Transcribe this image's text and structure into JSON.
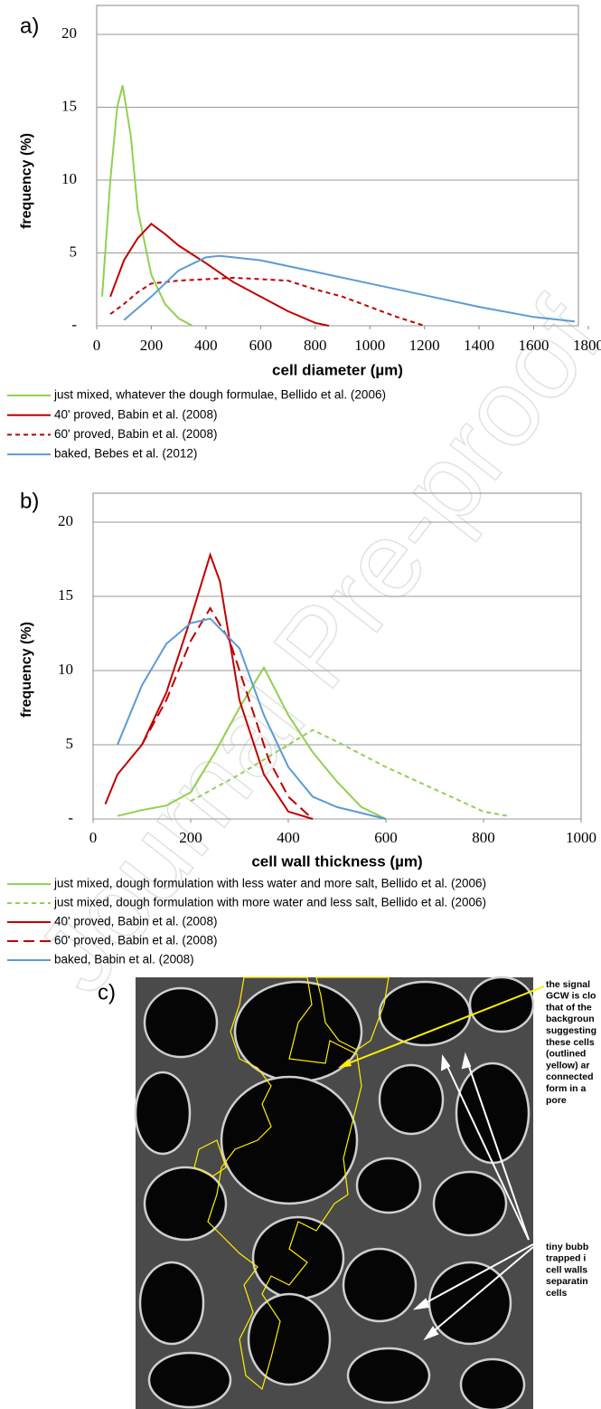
{
  "chart_data": [
    {
      "type": "line",
      "panel_label": "a)",
      "ylabel": "frequency (%)",
      "xlabel": "cell diameter (µm)",
      "xlim": [
        0,
        1800
      ],
      "xticks": [
        0,
        200,
        400,
        600,
        800,
        1000,
        1200,
        1400,
        1600,
        1800
      ],
      "ylim": [
        0,
        20
      ],
      "yticks": [
        {
          "value": 0,
          "label": "-"
        },
        5,
        10,
        15,
        20
      ],
      "grid": true,
      "series": [
        {
          "name": "just mixed, whatever the dough formulae, Bellido et al. (2006)",
          "color": "#92d050",
          "style": "solid",
          "x": [
            20,
            50,
            75,
            95,
            125,
            150,
            200,
            250,
            300,
            350
          ],
          "y": [
            2,
            10,
            15,
            16.5,
            13,
            8,
            3.5,
            1.5,
            0.5,
            0
          ]
        },
        {
          "name": "40' proved, Babin et al. (2008)",
          "color": "#c00000",
          "style": "solid",
          "x": [
            50,
            100,
            150,
            200,
            250,
            300,
            400,
            500,
            600,
            700,
            800,
            850
          ],
          "y": [
            2,
            4.5,
            6,
            7,
            6.3,
            5.5,
            4.3,
            3,
            2,
            1,
            0.2,
            0
          ]
        },
        {
          "name": "60' proved, Babin et al. (2008)",
          "color": "#c00000",
          "style": "dashed",
          "x": [
            50,
            100,
            150,
            200,
            300,
            400,
            500,
            600,
            700,
            800,
            900,
            1000,
            1100,
            1200
          ],
          "y": [
            0.8,
            1.5,
            2.3,
            2.9,
            3.1,
            3.2,
            3.3,
            3.2,
            3.1,
            2.5,
            2,
            1.3,
            0.6,
            0
          ]
        },
        {
          "name": "baked, Bebes et al. (2012)",
          "color": "#5b9bd5",
          "style": "solid",
          "x": [
            100,
            200,
            300,
            400,
            450,
            600,
            800,
            1000,
            1200,
            1400,
            1600,
            1750
          ],
          "y": [
            0.4,
            2,
            3.8,
            4.7,
            4.8,
            4.5,
            3.7,
            2.9,
            2.1,
            1.3,
            0.6,
            0.3
          ]
        }
      ]
    },
    {
      "type": "line",
      "panel_label": "b)",
      "ylabel": "frequency (%)",
      "xlabel": "cell wall thickness (µm)",
      "xlim": [
        0,
        1000
      ],
      "xticks": [
        0,
        200,
        400,
        600,
        800,
        1000
      ],
      "ylim": [
        0,
        20
      ],
      "yticks": [
        {
          "value": 0,
          "label": "-"
        },
        5,
        10,
        15,
        20
      ],
      "grid": true,
      "series": [
        {
          "name": "just mixed, dough formulation with less water and more salt, Bellido et al. (2006)",
          "color": "#92d050",
          "style": "solid",
          "x": [
            50,
            100,
            150,
            200,
            250,
            300,
            350,
            400,
            450,
            500,
            550,
            600
          ],
          "y": [
            0.2,
            0.6,
            0.9,
            1.8,
            4.5,
            7.5,
            10.2,
            7,
            4.5,
            2.5,
            0.8,
            0
          ]
        },
        {
          "name": "just mixed, dough formulation with more water and less salt, Bellido et al. (2006)",
          "color": "#92d050",
          "style": "dashed",
          "x": [
            200,
            300,
            400,
            450,
            500,
            600,
            700,
            800,
            850
          ],
          "y": [
            1.2,
            3,
            5,
            6,
            5.2,
            3.5,
            2,
            0.5,
            0.2
          ]
        },
        {
          "name": "40' proved, Babin et al. (2008)",
          "color": "#c00000",
          "style": "solid",
          "x": [
            25,
            50,
            100,
            150,
            200,
            240,
            260,
            300,
            350,
            400,
            450
          ],
          "y": [
            1,
            3,
            5,
            8.5,
            13.5,
            17.8,
            16,
            8,
            3,
            0.5,
            0
          ]
        },
        {
          "name": "60' proved, Babin et al. (2008)",
          "color": "#c00000",
          "style": "longdash",
          "x": [
            100,
            150,
            200,
            240,
            280,
            320,
            360,
            400,
            450
          ],
          "y": [
            5,
            8,
            12,
            14.2,
            12,
            8,
            4,
            1.5,
            0
          ]
        },
        {
          "name": "baked, Babin et al. (2008)",
          "color": "#5b9bd5",
          "style": "solid",
          "x": [
            50,
            100,
            150,
            200,
            240,
            300,
            350,
            400,
            450,
            500,
            600
          ],
          "y": [
            5,
            9,
            11.8,
            13.2,
            13.5,
            11.5,
            7,
            3.5,
            1.5,
            0.8,
            0
          ]
        }
      ]
    }
  ],
  "image_panel": {
    "label": "c)",
    "annotations": [
      {
        "lines": [
          "the signal",
          "GCW is clo",
          "that of the",
          "backgroun",
          "suggesting",
          "these cells",
          "(outlined",
          "yellow) ar",
          "connected",
          "form in a",
          "pore"
        ]
      },
      {
        "lines": [
          "tiny bubb",
          "trapped i",
          "cell walls",
          "separatin",
          "cells"
        ]
      }
    ]
  },
  "watermark": "Journal Pre-proof"
}
